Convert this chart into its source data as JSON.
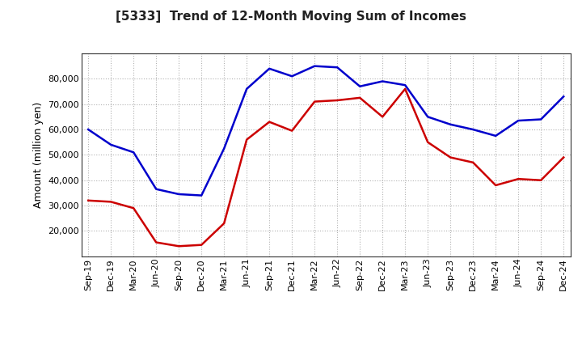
{
  "title": "[5333]  Trend of 12-Month Moving Sum of Incomes",
  "ylabel": "Amount (million yen)",
  "background_color": "#ffffff",
  "grid_color": "#aaaaaa",
  "x_labels": [
    "Sep-19",
    "Dec-19",
    "Mar-20",
    "Jun-20",
    "Sep-20",
    "Dec-20",
    "Mar-21",
    "Jun-21",
    "Sep-21",
    "Dec-21",
    "Mar-22",
    "Jun-22",
    "Sep-22",
    "Dec-22",
    "Mar-23",
    "Jun-23",
    "Sep-23",
    "Dec-23",
    "Mar-24",
    "Jun-24",
    "Sep-24",
    "Dec-24"
  ],
  "ordinary_income": [
    60000,
    54000,
    51000,
    36500,
    34500,
    34000,
    52500,
    76000,
    84000,
    81000,
    85000,
    84500,
    77000,
    79000,
    77500,
    65000,
    62000,
    60000,
    57500,
    63500,
    64000,
    73000
  ],
  "net_income": [
    32000,
    31500,
    29000,
    15500,
    14000,
    14500,
    23000,
    56000,
    63000,
    59500,
    71000,
    71500,
    72500,
    65000,
    76000,
    55000,
    49000,
    47000,
    38000,
    40500,
    40000,
    49000
  ],
  "ordinary_color": "#0000cc",
  "net_color": "#cc0000",
  "ylim_min": 10000,
  "ylim_max": 90000,
  "yticks": [
    20000,
    30000,
    40000,
    50000,
    60000,
    70000,
    80000
  ],
  "line_width": 1.8,
  "title_fontsize": 11,
  "ylabel_fontsize": 9,
  "tick_fontsize": 8,
  "legend_fontsize": 9
}
